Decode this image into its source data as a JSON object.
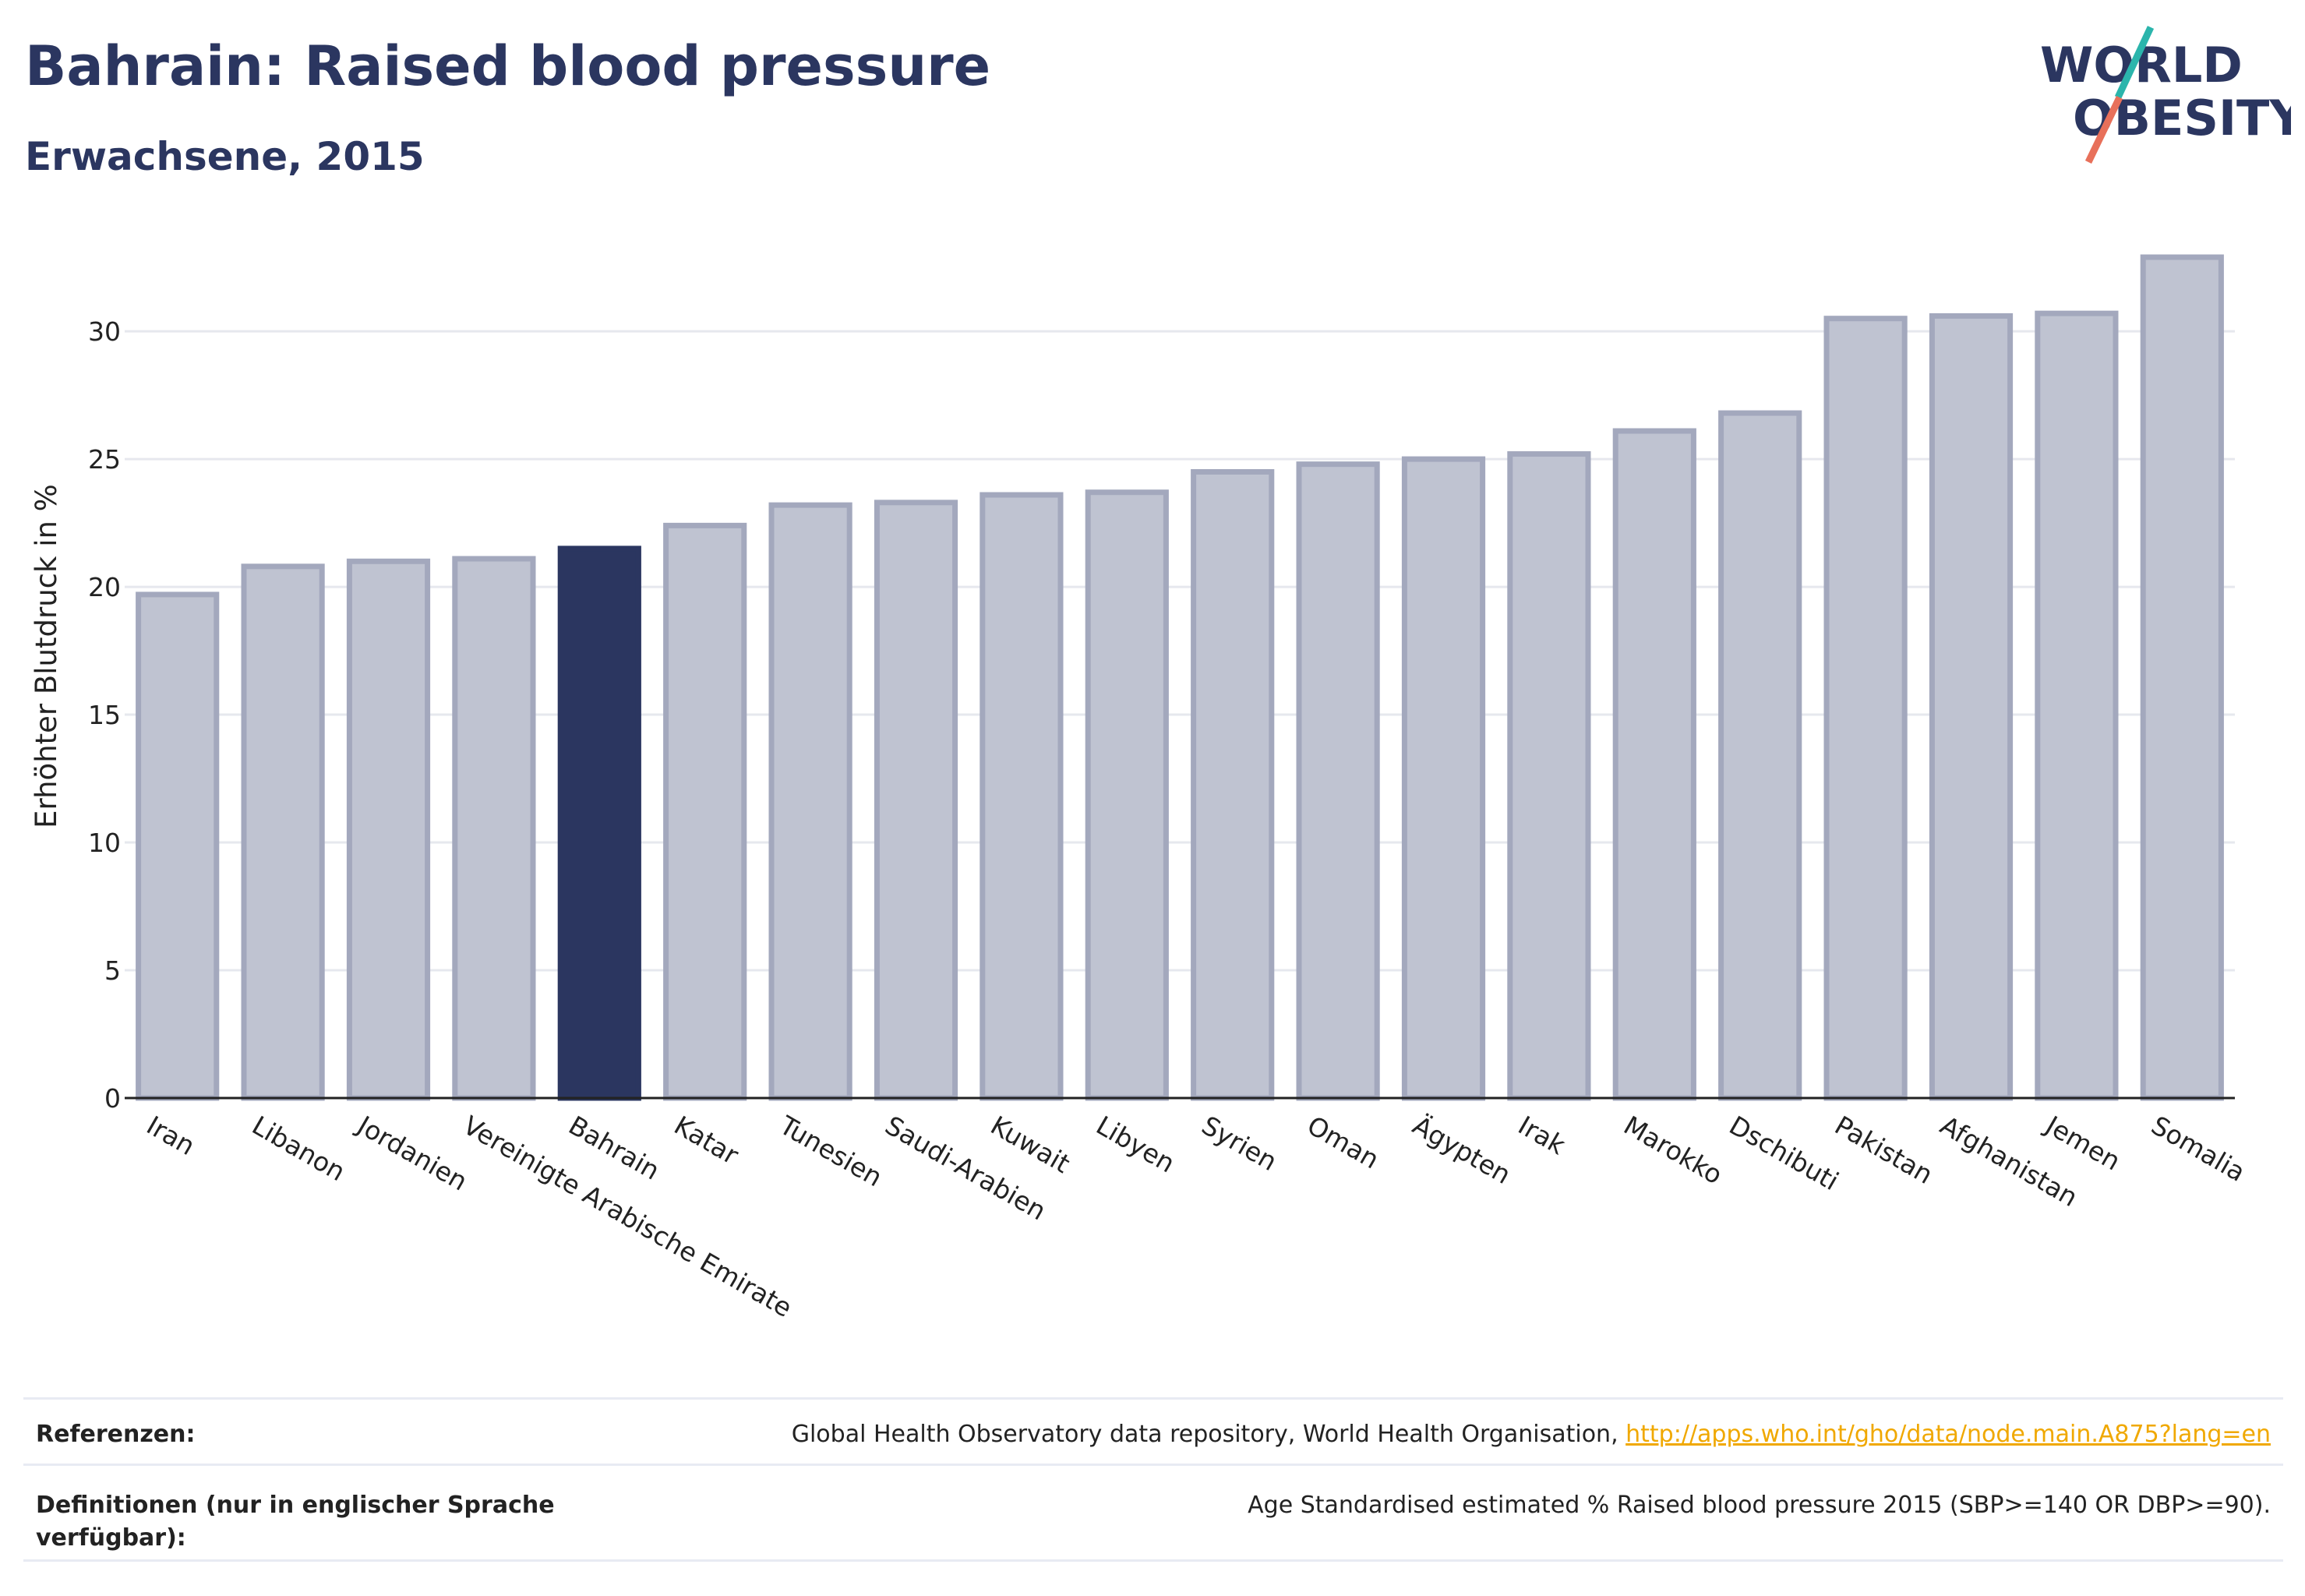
{
  "header": {
    "title": "Bahrain: Raised blood pressure",
    "subtitle": "Erwachsene, 2015"
  },
  "logo": {
    "line1": "WORLD",
    "line2": "OBESITY",
    "accent_teal": "#2bb5ac",
    "accent_coral": "#e8705a"
  },
  "colors": {
    "bar": "#bfc3d1",
    "bar_border": "#a3a8bd",
    "highlight": "#2b3660",
    "text_dark": "#2b3660",
    "link": "#f0a800"
  },
  "chart_data": {
    "type": "bar",
    "ylabel": "Erhöhter Blutdruck in %",
    "ylim": [
      0,
      34
    ],
    "yticks": [
      0,
      5,
      10,
      15,
      20,
      25,
      30
    ],
    "grid": true,
    "highlight": "Bahrain",
    "categories": [
      "Iran",
      "Libanon",
      "Jordanien",
      "Vereinigte Arabische Emirate",
      "Bahrain",
      "Katar",
      "Tunesien",
      "Saudi-Arabien",
      "Kuwait",
      "Libyen",
      "Syrien",
      "Oman",
      "Ägypten",
      "Irak",
      "Marokko",
      "Dschibuti",
      "Pakistan",
      "Afghanistan",
      "Jemen",
      "Somalia"
    ],
    "values": [
      19.7,
      20.8,
      21.0,
      21.1,
      21.5,
      22.4,
      23.2,
      23.3,
      23.6,
      23.7,
      24.5,
      24.8,
      25.0,
      25.2,
      26.1,
      26.8,
      30.5,
      30.6,
      30.7,
      32.9
    ]
  },
  "references": {
    "ref_label": "Referenzen:",
    "ref_text": "Global Health Observatory data repository, World Health Organisation, ",
    "ref_link": "http://apps.who.int/gho/data/node.main.A875?lang=en",
    "def_label": "Definitionen (nur in englischer Sprache verfügbar):",
    "def_text": "Age Standardised estimated % Raised blood pressure 2015 (SBP>=140 OR DBP>=90)."
  }
}
